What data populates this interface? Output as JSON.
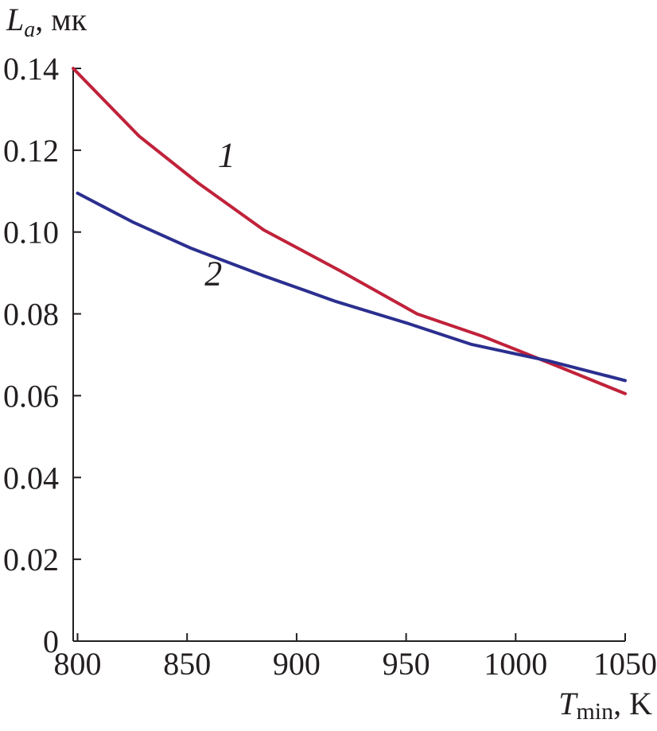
{
  "chart_data": {
    "type": "line",
    "ylabel": {
      "symbol": "L",
      "subscript": "a",
      "unit": ", мк"
    },
    "xlabel": {
      "symbol": "T",
      "subscript": "min",
      "unit": ", K"
    },
    "xlim": [
      798,
      1050
    ],
    "ylim": [
      0,
      0.14
    ],
    "x_ticks": [
      {
        "value": 800,
        "label": "800"
      },
      {
        "value": 850,
        "label": "850"
      },
      {
        "value": 900,
        "label": "900"
      },
      {
        "value": 950,
        "label": "950"
      },
      {
        "value": 1000,
        "label": "1000"
      },
      {
        "value": 1050,
        "label": "1050"
      }
    ],
    "y_ticks": [
      {
        "value": 0,
        "label": "0"
      },
      {
        "value": 0.02,
        "label": "0.02"
      },
      {
        "value": 0.04,
        "label": "0.04"
      },
      {
        "value": 0.06,
        "label": "0.06"
      },
      {
        "value": 0.08,
        "label": "0.08"
      },
      {
        "value": 0.1,
        "label": "0.10"
      },
      {
        "value": 0.12,
        "label": "0.12"
      },
      {
        "value": 0.14,
        "label": "0.14"
      }
    ],
    "grid": false,
    "series": [
      {
        "label": "1",
        "color": "#c0223a",
        "x": [
          798,
          828,
          855,
          885,
          920,
          955,
          985,
          1020,
          1050
        ],
        "y": [
          0.14,
          0.1235,
          0.112,
          0.1005,
          0.0905,
          0.08,
          0.0745,
          0.067,
          0.0605
        ]
      },
      {
        "label": "2",
        "color": "#2b2f8f",
        "x": [
          800,
          825,
          852,
          885,
          918,
          950,
          980,
          1015,
          1050
        ],
        "y": [
          0.1095,
          0.1025,
          0.096,
          0.0893,
          0.083,
          0.0778,
          0.0725,
          0.0685,
          0.0637
        ]
      }
    ],
    "curve_labels": [
      {
        "text": "1",
        "x": 868,
        "y": 0.116
      },
      {
        "text": "2",
        "x": 862,
        "y": 0.087
      }
    ]
  }
}
